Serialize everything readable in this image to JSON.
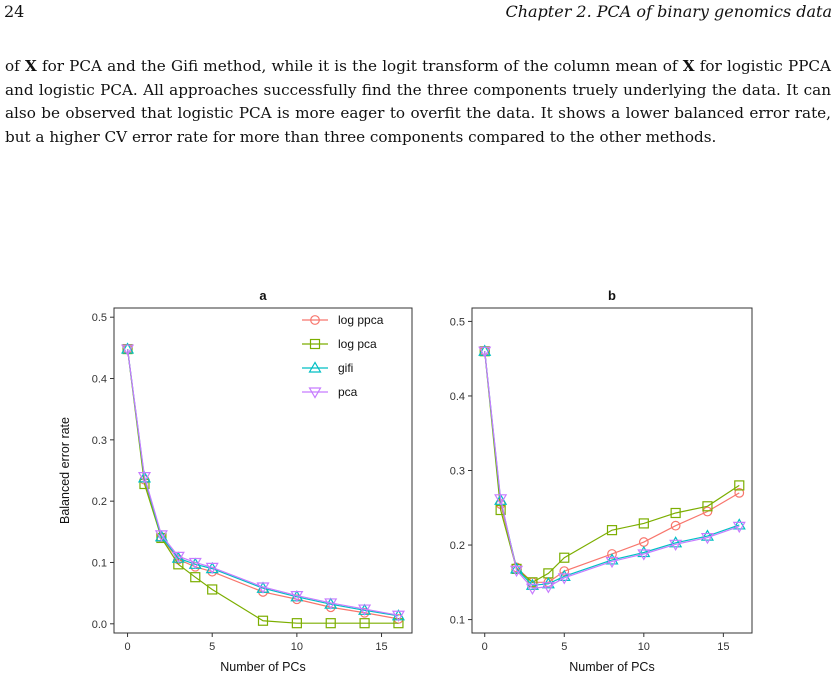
{
  "header": {
    "page_number": "24",
    "running_title": "Chapter 2.  PCA of binary genomics data"
  },
  "paragraph": {
    "t1": "of ",
    "x1": "X",
    "t2": " for PCA and the Gifi method, while it is the logit transform of the column mean of ",
    "x2": "X",
    "t3": " for logistic PPCA and logistic PCA. All approaches successfully find the three components truely underlying the data. It can also be observed that logistic PCA is more eager to overfit the data. It shows a lower balanced error rate, but a higher CV error rate for more than three components compared to the other methods."
  },
  "colors": {
    "log ppca": "#f8766d",
    "log pca": "#7cae00",
    "gifi": "#00bfc4",
    "pca": "#c77cff"
  },
  "chart_data": [
    {
      "type": "line",
      "title": "a",
      "xlabel": "Number of PCs",
      "ylabel": "Balanced error rate",
      "xlim": [
        -0.8,
        16.8
      ],
      "ylim": [
        -0.015,
        0.515
      ],
      "x_ticks": [
        0,
        5,
        10,
        15
      ],
      "y_ticks": [
        0.0,
        0.1,
        0.2,
        0.3,
        0.4,
        0.5
      ],
      "x_tick_labels": [
        "0",
        "5",
        "10",
        "15"
      ],
      "y_tick_labels": [
        "0.0",
        "0.1",
        "0.2",
        "0.3",
        "0.4",
        "0.5"
      ],
      "legend": {
        "position": "top-right",
        "entries": [
          "log ppca",
          "log pca",
          "gifi",
          "pca"
        ]
      },
      "x": [
        0,
        1,
        2,
        3,
        4,
        5,
        8,
        10,
        12,
        14,
        16
      ],
      "series": [
        {
          "name": "log ppca",
          "marker": "circle",
          "values": [
            0.448,
            0.235,
            0.14,
            0.105,
            0.093,
            0.085,
            0.052,
            0.04,
            0.027,
            0.018,
            0.008
          ]
        },
        {
          "name": "log pca",
          "marker": "square",
          "values": [
            0.448,
            0.228,
            0.14,
            0.097,
            0.076,
            0.056,
            0.005,
            0.001,
            0.001,
            0.001,
            0.001
          ]
        },
        {
          "name": "gifi",
          "marker": "triangle",
          "values": [
            0.448,
            0.238,
            0.142,
            0.107,
            0.097,
            0.09,
            0.058,
            0.044,
            0.032,
            0.022,
            0.013
          ]
        },
        {
          "name": "pca",
          "marker": "tri-down",
          "values": [
            0.448,
            0.24,
            0.145,
            0.11,
            0.1,
            0.092,
            0.06,
            0.046,
            0.034,
            0.024,
            0.014
          ]
        }
      ]
    },
    {
      "type": "line",
      "title": "b",
      "xlabel": "Number of PCs",
      "ylabel": "",
      "xlim": [
        -0.8,
        16.8
      ],
      "ylim": [
        0.082,
        0.518
      ],
      "x_ticks": [
        0,
        5,
        10,
        15
      ],
      "y_ticks": [
        0.1,
        0.2,
        0.3,
        0.4,
        0.5
      ],
      "x_tick_labels": [
        "0",
        "5",
        "10",
        "15"
      ],
      "y_tick_labels": [
        "0.1",
        "0.2",
        "0.3",
        "0.4",
        "0.5"
      ],
      "x": [
        0,
        1,
        2,
        3,
        4,
        5,
        8,
        10,
        12,
        14,
        16
      ],
      "series": [
        {
          "name": "log ppca",
          "marker": "circle",
          "values": [
            0.46,
            0.255,
            0.17,
            0.15,
            0.15,
            0.165,
            0.188,
            0.204,
            0.226,
            0.245,
            0.27
          ]
        },
        {
          "name": "log pca",
          "marker": "square",
          "values": [
            0.46,
            0.247,
            0.168,
            0.15,
            0.162,
            0.183,
            0.22,
            0.229,
            0.243,
            0.252,
            0.28
          ]
        },
        {
          "name": "gifi",
          "marker": "triangle",
          "values": [
            0.46,
            0.26,
            0.168,
            0.146,
            0.148,
            0.158,
            0.18,
            0.19,
            0.203,
            0.212,
            0.227
          ]
        },
        {
          "name": "pca",
          "marker": "tri-down",
          "values": [
            0.46,
            0.262,
            0.166,
            0.142,
            0.144,
            0.156,
            0.178,
            0.188,
            0.201,
            0.21,
            0.225
          ]
        }
      ]
    }
  ]
}
